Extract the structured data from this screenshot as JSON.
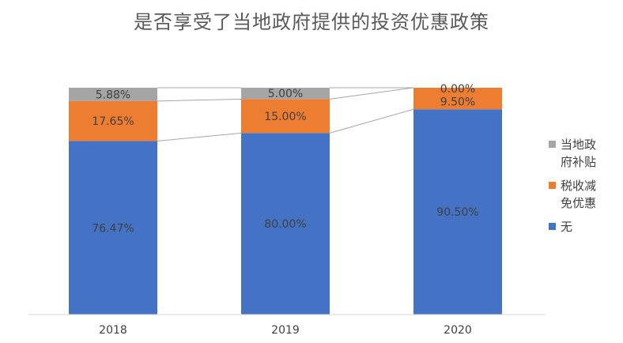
{
  "chart_data": {
    "type": "stacked_bar",
    "title": "是否享受了当地政府提供的投资优惠政策",
    "categories": [
      "2018",
      "2019",
      "2020"
    ],
    "series": [
      {
        "name": "无",
        "color": "#4472C4",
        "values": [
          76.47,
          80.0,
          90.5
        ],
        "labels": [
          "76.47%",
          "80.00%",
          "90.50%"
        ]
      },
      {
        "name": "税收减免优惠",
        "color": "#ED7D31",
        "values": [
          17.65,
          15.0,
          9.5
        ],
        "labels": [
          "17.65%",
          "15.00%",
          "9.50%"
        ]
      },
      {
        "name": "当地政府补贴",
        "color": "#A5A5A5",
        "values": [
          5.88,
          5.0,
          0.0
        ],
        "labels": [
          "5.88%",
          "5.00%",
          "0.00%"
        ]
      }
    ],
    "ylim": [
      0,
      100
    ],
    "series_lines": true,
    "grid": false,
    "legend_position": "right"
  }
}
